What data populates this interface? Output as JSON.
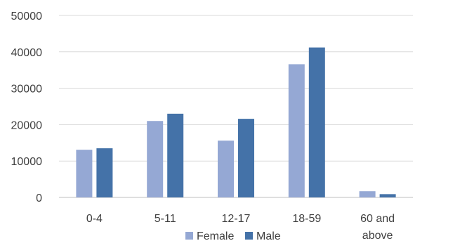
{
  "chart_data": {
    "type": "bar",
    "title": "",
    "xlabel": "",
    "ylabel": "",
    "categories": [
      "0-4",
      "5-11",
      "12-17",
      "18-59",
      "60 and above"
    ],
    "category_label_lines": [
      [
        "0-4"
      ],
      [
        "5-11"
      ],
      [
        "12-17"
      ],
      [
        "18-59"
      ],
      [
        "60 and",
        "above"
      ]
    ],
    "series": [
      {
        "name": "Female",
        "color": "#95A8D4",
        "values": [
          13100,
          21000,
          15600,
          36600,
          1700
        ]
      },
      {
        "name": "Male",
        "color": "#4472A8",
        "values": [
          13500,
          23000,
          21600,
          41200,
          900
        ]
      }
    ],
    "ylim": [
      0,
      50000
    ],
    "yticks": [
      0,
      10000,
      20000,
      30000,
      40000,
      50000
    ],
    "grid": true,
    "legend": "bottom"
  }
}
